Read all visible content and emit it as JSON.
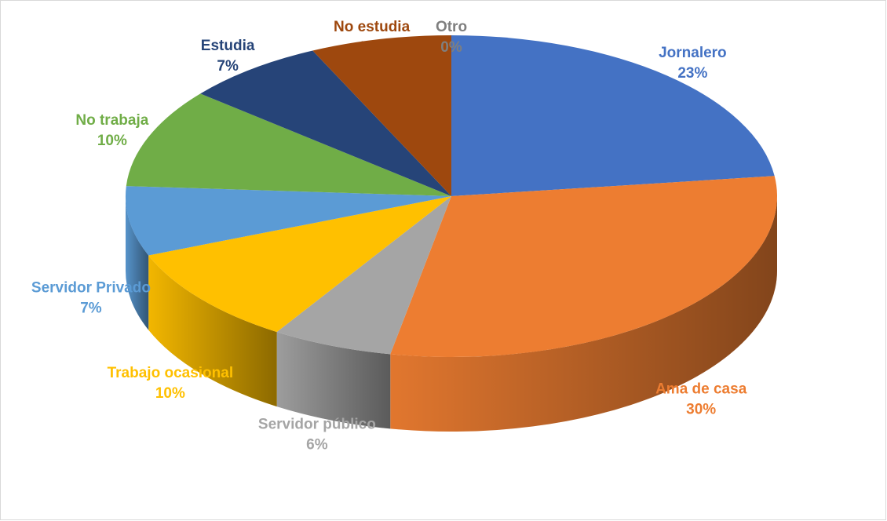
{
  "chart_data": {
    "type": "pie",
    "categories": [
      "Jornalero",
      "Ama de casa",
      "Servidor público",
      "Trabajo ocasional",
      "Servidor Privado",
      "No trabaja",
      "Estudia",
      "No estudia",
      "Otro"
    ],
    "values": [
      23,
      30,
      6,
      10,
      7,
      10,
      7,
      7,
      0
    ],
    "value_labels": [
      "23%",
      "30%",
      "6%",
      "10%",
      "7%",
      "10%",
      "7%",
      "7%",
      "0%"
    ],
    "colors": [
      "#4472c4",
      "#ed7d31",
      "#a5a5a5",
      "#ffc000",
      "#5b9bd5",
      "#70ad47",
      "#264478",
      "#9e480e",
      "#7f7f7f"
    ]
  }
}
